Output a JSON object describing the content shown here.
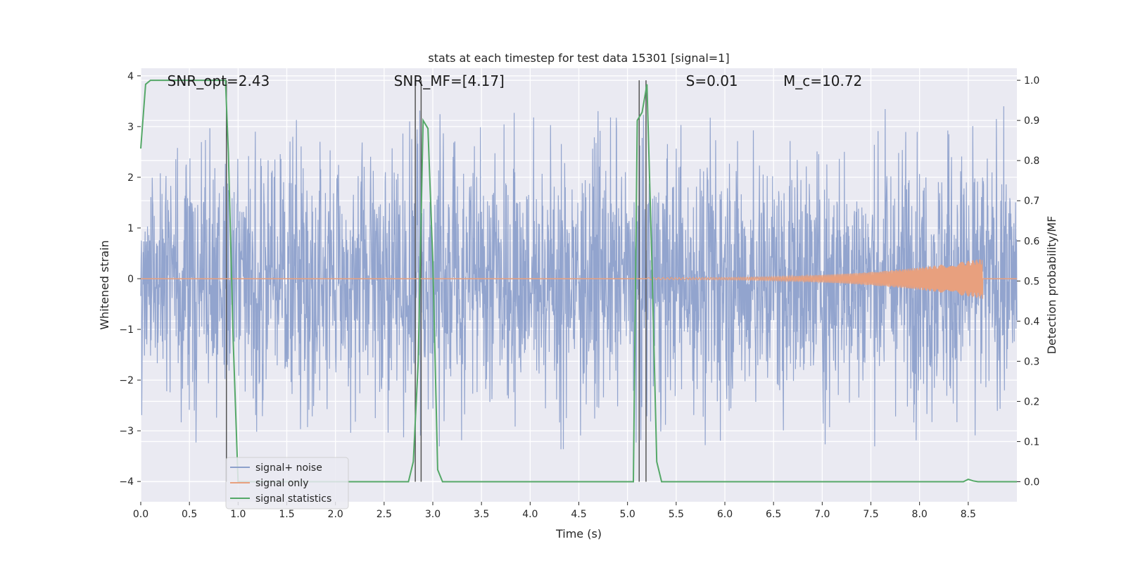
{
  "chart_data": {
    "type": "line",
    "title": "stats at each timestep for test data 15301 [signal=1]",
    "xlabel": "Time (s)",
    "ylabel_left": "Whitened strain",
    "ylabel_right": "Detection probability/MF",
    "xlim": [
      0.0,
      9.0
    ],
    "ylim_left": [
      -4.4,
      4.15
    ],
    "ylim_right": [
      -0.05,
      1.03
    ],
    "x_ticks": [
      0.0,
      0.5,
      1.0,
      1.5,
      2.0,
      2.5,
      3.0,
      3.5,
      4.0,
      4.5,
      5.0,
      5.5,
      6.0,
      6.5,
      7.0,
      7.5,
      8.0,
      8.5
    ],
    "x_tick_labels": [
      "0.0",
      "0.5",
      "1.0",
      "1.5",
      "2.0",
      "2.5",
      "3.0",
      "3.5",
      "4.0",
      "4.5",
      "5.0",
      "5.5",
      "6.0",
      "6.5",
      "7.0",
      "7.5",
      "8.0",
      "8.5"
    ],
    "y_left_ticks": [
      -4,
      -3,
      -2,
      -1,
      0,
      1,
      2,
      3,
      4
    ],
    "y_left_tick_labels": [
      "−4",
      "−3",
      "−2",
      "−1",
      "0",
      "1",
      "2",
      "3",
      "4"
    ],
    "y_right_ticks": [
      0.0,
      0.1,
      0.2,
      0.3,
      0.4,
      0.5,
      0.6,
      0.7,
      0.8,
      0.9,
      1.0
    ],
    "y_right_tick_labels": [
      "0.0",
      "0.1",
      "0.2",
      "0.3",
      "0.4",
      "0.5",
      "0.6",
      "0.7",
      "0.8",
      "0.9",
      "1.0"
    ],
    "grid": true,
    "legend_position": "lower-left",
    "annotations": [
      {
        "text": "SNR_opt=2.43",
        "x": 0.2,
        "y": 3.9
      },
      {
        "text": "SNR_MF=[4.17]",
        "x": 2.6,
        "y": 3.9
      },
      {
        "text": "S=0.01",
        "x": 5.6,
        "y": 3.9
      },
      {
        "text": "M_c=10.72",
        "x": 6.6,
        "y": 3.9
      }
    ],
    "vertical_lines": [
      0.88,
      2.82,
      2.88,
      5.12,
      5.19
    ],
    "series": [
      {
        "name": "signal+ noise",
        "axis": "left",
        "color": "#8da0cb",
        "envelope": {
          "x": [
            0.0,
            9.0
          ],
          "typical_abs": 1.8,
          "peak_abs": 3.4
        }
      },
      {
        "name": "signal only",
        "axis": "left",
        "color": "#e8a07e",
        "chirp": {
          "start_x": 5.2,
          "end_x": 8.65,
          "start_amp": 0.02,
          "end_amp": 0.4
        }
      },
      {
        "name": "signal statistics",
        "axis": "right",
        "color": "#55a868",
        "x": [
          0.0,
          0.05,
          0.1,
          0.3,
          0.5,
          0.7,
          0.87,
          0.9,
          0.95,
          1.0,
          1.5,
          2.0,
          2.5,
          2.75,
          2.8,
          2.85,
          2.9,
          2.95,
          3.0,
          3.05,
          3.1,
          3.15,
          3.5,
          4.0,
          4.5,
          5.0,
          5.06,
          5.1,
          5.15,
          5.2,
          5.25,
          5.3,
          5.35,
          6.0,
          7.0,
          8.0,
          8.45,
          8.5,
          8.55,
          8.6,
          9.0
        ],
        "y": [
          0.83,
          0.99,
          1.0,
          1.0,
          1.0,
          1.0,
          1.0,
          0.82,
          0.35,
          0.0,
          0.0,
          0.0,
          0.0,
          0.0,
          0.05,
          0.3,
          0.9,
          0.88,
          0.55,
          0.03,
          0.0,
          0.0,
          0.0,
          0.0,
          0.0,
          0.0,
          0.0,
          0.9,
          0.92,
          0.99,
          0.55,
          0.05,
          0.0,
          0.0,
          0.0,
          0.0,
          0.0,
          0.006,
          0.002,
          0.0,
          0.0
        ]
      }
    ]
  }
}
